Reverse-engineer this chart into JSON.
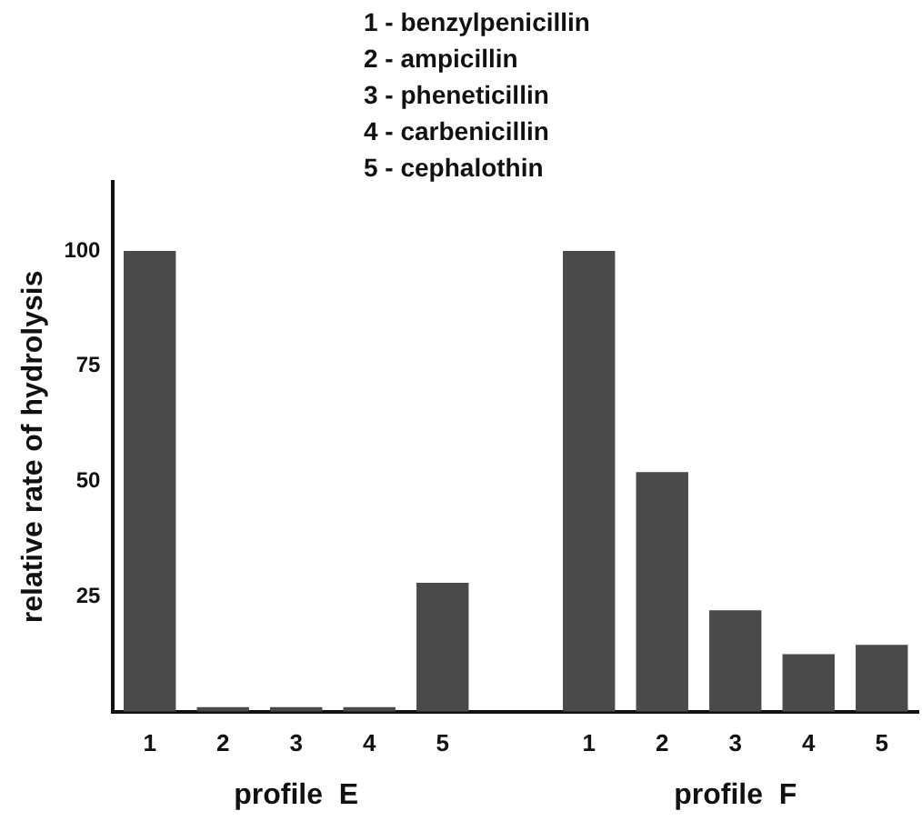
{
  "chart_data": {
    "type": "bar",
    "ylabel": "relative rate of hydrolysis",
    "categories": [
      "1",
      "2",
      "3",
      "4",
      "5",
      null,
      "1",
      "2",
      "3",
      "4",
      "5"
    ],
    "values": [
      100,
      1,
      1,
      1,
      28,
      null,
      100,
      52,
      22,
      12.5,
      14.5
    ],
    "color": "#4a4a4a",
    "ylim": [
      0,
      115
    ],
    "yticks": [
      25,
      50,
      75,
      100
    ],
    "grid": false,
    "legend": false,
    "annotations": [
      "1 - benzylpenicillin",
      "2 - ampicillin",
      "3 - pheneticillin",
      "4 - carbenicillin",
      "5 - cephalothin",
      "profile  E",
      "profile  F"
    ]
  }
}
